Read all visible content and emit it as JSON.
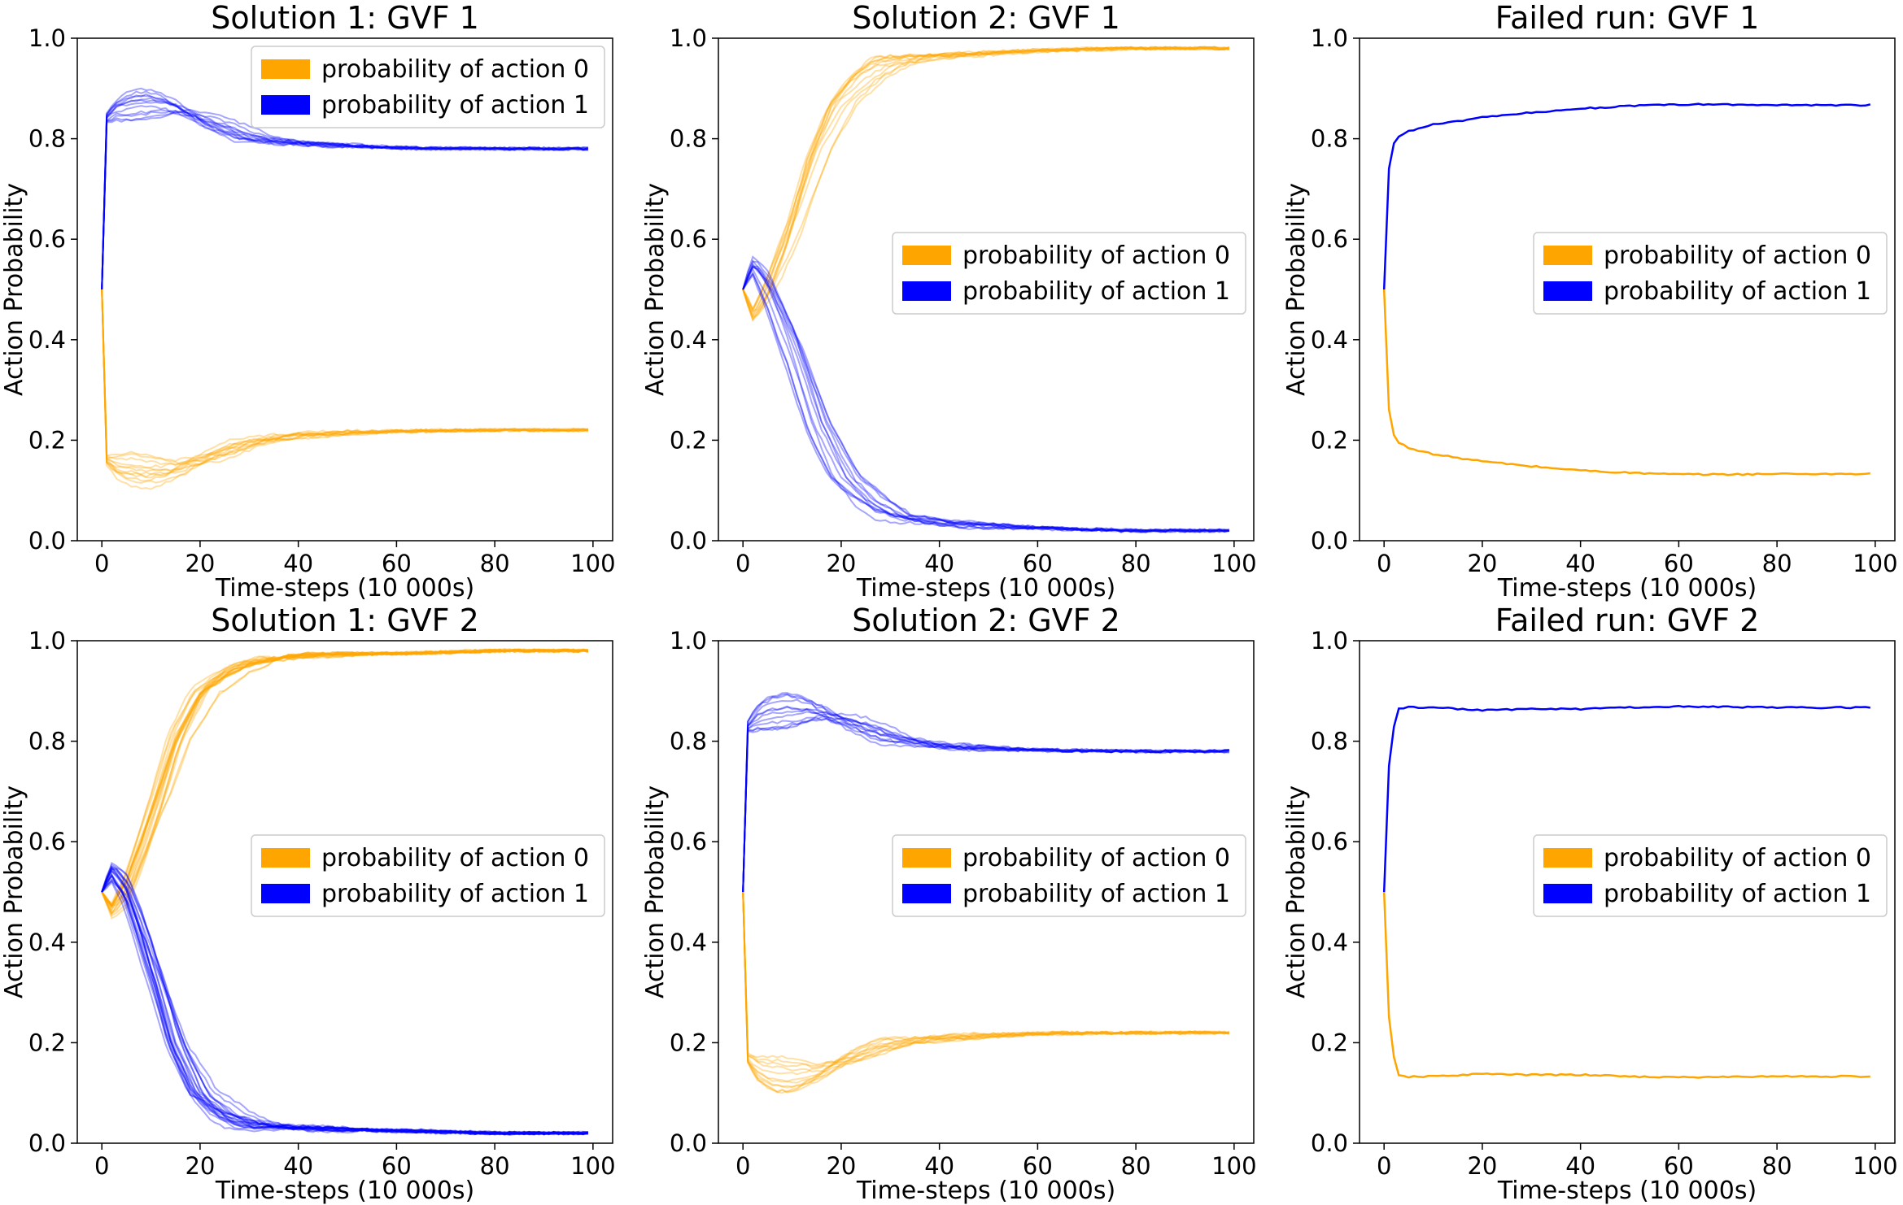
{
  "colors": {
    "action0": "#ffa500",
    "action1": "#0000ff",
    "frame": "#000000",
    "legend_border": "#cccccc"
  },
  "chart_data": [
    {
      "type": "line",
      "title": "Solution 1: GVF 1",
      "xlabel": "Time-steps (10 000s)",
      "ylabel": "Action Probability",
      "xlim": [
        -5,
        104
      ],
      "ylim": [
        0,
        1.0
      ],
      "xticks": [
        "0",
        "20",
        "40",
        "60",
        "80",
        "100"
      ],
      "yticks": [
        "0.0",
        "0.2",
        "0.4",
        "0.6",
        "0.8",
        "1.0"
      ],
      "grid": false,
      "legend_position": "upper-right",
      "series": [
        {
          "name": "probability of action 0",
          "color": "#ffa500",
          "runs": 12,
          "x": [
            0,
            1,
            3,
            6,
            10,
            15,
            20,
            30,
            40,
            60,
            80,
            99
          ],
          "values": [
            0.5,
            0.16,
            0.145,
            0.14,
            0.135,
            0.14,
            0.16,
            0.195,
            0.21,
            0.218,
            0.22,
            0.22
          ]
        },
        {
          "name": "probability of action 1",
          "color": "#0000ff",
          "runs": 12,
          "x": [
            0,
            1,
            3,
            6,
            10,
            15,
            20,
            30,
            40,
            60,
            80,
            99
          ],
          "values": [
            0.5,
            0.84,
            0.855,
            0.86,
            0.865,
            0.86,
            0.84,
            0.805,
            0.79,
            0.782,
            0.78,
            0.78
          ]
        }
      ]
    },
    {
      "type": "line",
      "title": "Solution 2: GVF 1",
      "xlabel": "Time-steps (10 000s)",
      "ylabel": "Action Probability",
      "xlim": [
        -5,
        104
      ],
      "ylim": [
        0,
        1.0
      ],
      "xticks": [
        "0",
        "20",
        "40",
        "60",
        "80",
        "100"
      ],
      "yticks": [
        "0.0",
        "0.2",
        "0.4",
        "0.6",
        "0.8",
        "1.0"
      ],
      "grid": false,
      "legend_position": "center-right",
      "series": [
        {
          "name": "probability of action 0",
          "color": "#ffa500",
          "runs": 12,
          "x": [
            0,
            2,
            5,
            10,
            15,
            20,
            25,
            30,
            40,
            60,
            80,
            99
          ],
          "values": [
            0.5,
            0.45,
            0.5,
            0.62,
            0.77,
            0.87,
            0.92,
            0.95,
            0.965,
            0.975,
            0.98,
            0.98
          ]
        },
        {
          "name": "probability of action 1",
          "color": "#0000ff",
          "runs": 12,
          "x": [
            0,
            2,
            5,
            10,
            15,
            20,
            25,
            30,
            40,
            60,
            80,
            99
          ],
          "values": [
            0.5,
            0.55,
            0.5,
            0.38,
            0.23,
            0.13,
            0.08,
            0.05,
            0.035,
            0.025,
            0.02,
            0.02
          ]
        }
      ]
    },
    {
      "type": "line",
      "title": "Failed run: GVF 1",
      "xlabel": "Time-steps (10 000s)",
      "ylabel": "Action Probability",
      "xlim": [
        -5,
        104
      ],
      "ylim": [
        0,
        1.0
      ],
      "xticks": [
        "0",
        "20",
        "40",
        "60",
        "80",
        "100"
      ],
      "yticks": [
        "0.0",
        "0.2",
        "0.4",
        "0.6",
        "0.8",
        "1.0"
      ],
      "grid": false,
      "legend_position": "center-right",
      "series": [
        {
          "name": "probability of action 0",
          "color": "#ffa500",
          "runs": 1,
          "x": [
            0,
            1,
            2,
            3,
            5,
            10,
            20,
            30,
            40,
            50,
            60,
            70,
            80,
            90,
            99
          ],
          "values": [
            0.5,
            0.26,
            0.21,
            0.195,
            0.185,
            0.172,
            0.158,
            0.148,
            0.14,
            0.135,
            0.132,
            0.132,
            0.133,
            0.133,
            0.133
          ]
        },
        {
          "name": "probability of action 1",
          "color": "#0000ff",
          "runs": 1,
          "x": [
            0,
            1,
            2,
            3,
            5,
            10,
            20,
            30,
            40,
            50,
            60,
            70,
            80,
            90,
            99
          ],
          "values": [
            0.5,
            0.74,
            0.79,
            0.805,
            0.815,
            0.828,
            0.842,
            0.852,
            0.86,
            0.865,
            0.868,
            0.868,
            0.867,
            0.867,
            0.867
          ]
        }
      ]
    },
    {
      "type": "line",
      "title": "Solution 1: GVF 2",
      "xlabel": "Time-steps (10 000s)",
      "ylabel": "Action Probability",
      "xlim": [
        -5,
        104
      ],
      "ylim": [
        0,
        1.0
      ],
      "xticks": [
        "0",
        "20",
        "40",
        "60",
        "80",
        "100"
      ],
      "yticks": [
        "0.0",
        "0.2",
        "0.4",
        "0.6",
        "0.8",
        "1.0"
      ],
      "grid": false,
      "legend_position": "center-right",
      "series": [
        {
          "name": "probability of action 0",
          "color": "#ffa500",
          "runs": 20,
          "x": [
            0,
            2,
            5,
            8,
            12,
            15,
            20,
            25,
            30,
            40,
            60,
            80,
            99
          ],
          "values": [
            0.5,
            0.46,
            0.5,
            0.58,
            0.7,
            0.8,
            0.9,
            0.94,
            0.96,
            0.97,
            0.975,
            0.98,
            0.98
          ]
        },
        {
          "name": "probability of action 1",
          "color": "#0000ff",
          "runs": 20,
          "x": [
            0,
            2,
            5,
            8,
            12,
            15,
            20,
            25,
            30,
            40,
            60,
            80,
            99
          ],
          "values": [
            0.5,
            0.54,
            0.5,
            0.42,
            0.3,
            0.2,
            0.1,
            0.06,
            0.04,
            0.03,
            0.025,
            0.02,
            0.02
          ]
        }
      ]
    },
    {
      "type": "line",
      "title": "Solution 2: GVF 2",
      "xlabel": "Time-steps (10 000s)",
      "ylabel": "Action Probability",
      "xlim": [
        -5,
        104
      ],
      "ylim": [
        0,
        1.0
      ],
      "xticks": [
        "0",
        "20",
        "40",
        "60",
        "80",
        "100"
      ],
      "yticks": [
        "0.0",
        "0.2",
        "0.4",
        "0.6",
        "0.8",
        "1.0"
      ],
      "grid": false,
      "legend_position": "center-right",
      "series": [
        {
          "name": "probability of action 0",
          "color": "#ffa500",
          "runs": 12,
          "x": [
            0,
            1,
            3,
            6,
            10,
            15,
            20,
            30,
            40,
            60,
            80,
            99
          ],
          "values": [
            0.5,
            0.17,
            0.15,
            0.14,
            0.135,
            0.14,
            0.16,
            0.195,
            0.21,
            0.218,
            0.22,
            0.22
          ]
        },
        {
          "name": "probability of action 1",
          "color": "#0000ff",
          "runs": 12,
          "x": [
            0,
            1,
            3,
            6,
            10,
            15,
            20,
            30,
            40,
            60,
            80,
            99
          ],
          "values": [
            0.5,
            0.83,
            0.85,
            0.86,
            0.865,
            0.86,
            0.84,
            0.805,
            0.79,
            0.782,
            0.78,
            0.78
          ]
        }
      ]
    },
    {
      "type": "line",
      "title": "Failed run: GVF 2",
      "xlabel": "Time-steps (10 000s)",
      "ylabel": "Action Probability",
      "xlim": [
        -5,
        104
      ],
      "ylim": [
        0,
        1.0
      ],
      "xticks": [
        "0",
        "20",
        "40",
        "60",
        "80",
        "100"
      ],
      "yticks": [
        "0.0",
        "0.2",
        "0.4",
        "0.6",
        "0.8",
        "1.0"
      ],
      "grid": false,
      "legend_position": "center-right",
      "series": [
        {
          "name": "probability of action 0",
          "color": "#ffa500",
          "runs": 1,
          "x": [
            0,
            1,
            2,
            3,
            5,
            10,
            20,
            30,
            40,
            50,
            60,
            70,
            80,
            90,
            99
          ],
          "values": [
            0.5,
            0.25,
            0.17,
            0.135,
            0.132,
            0.133,
            0.138,
            0.136,
            0.136,
            0.133,
            0.131,
            0.132,
            0.133,
            0.133,
            0.133
          ]
        },
        {
          "name": "probability of action 1",
          "color": "#0000ff",
          "runs": 1,
          "x": [
            0,
            1,
            2,
            3,
            5,
            10,
            20,
            30,
            40,
            50,
            60,
            70,
            80,
            90,
            99
          ],
          "values": [
            0.5,
            0.75,
            0.83,
            0.865,
            0.868,
            0.867,
            0.862,
            0.864,
            0.864,
            0.867,
            0.869,
            0.868,
            0.867,
            0.867,
            0.867
          ]
        }
      ]
    }
  ]
}
